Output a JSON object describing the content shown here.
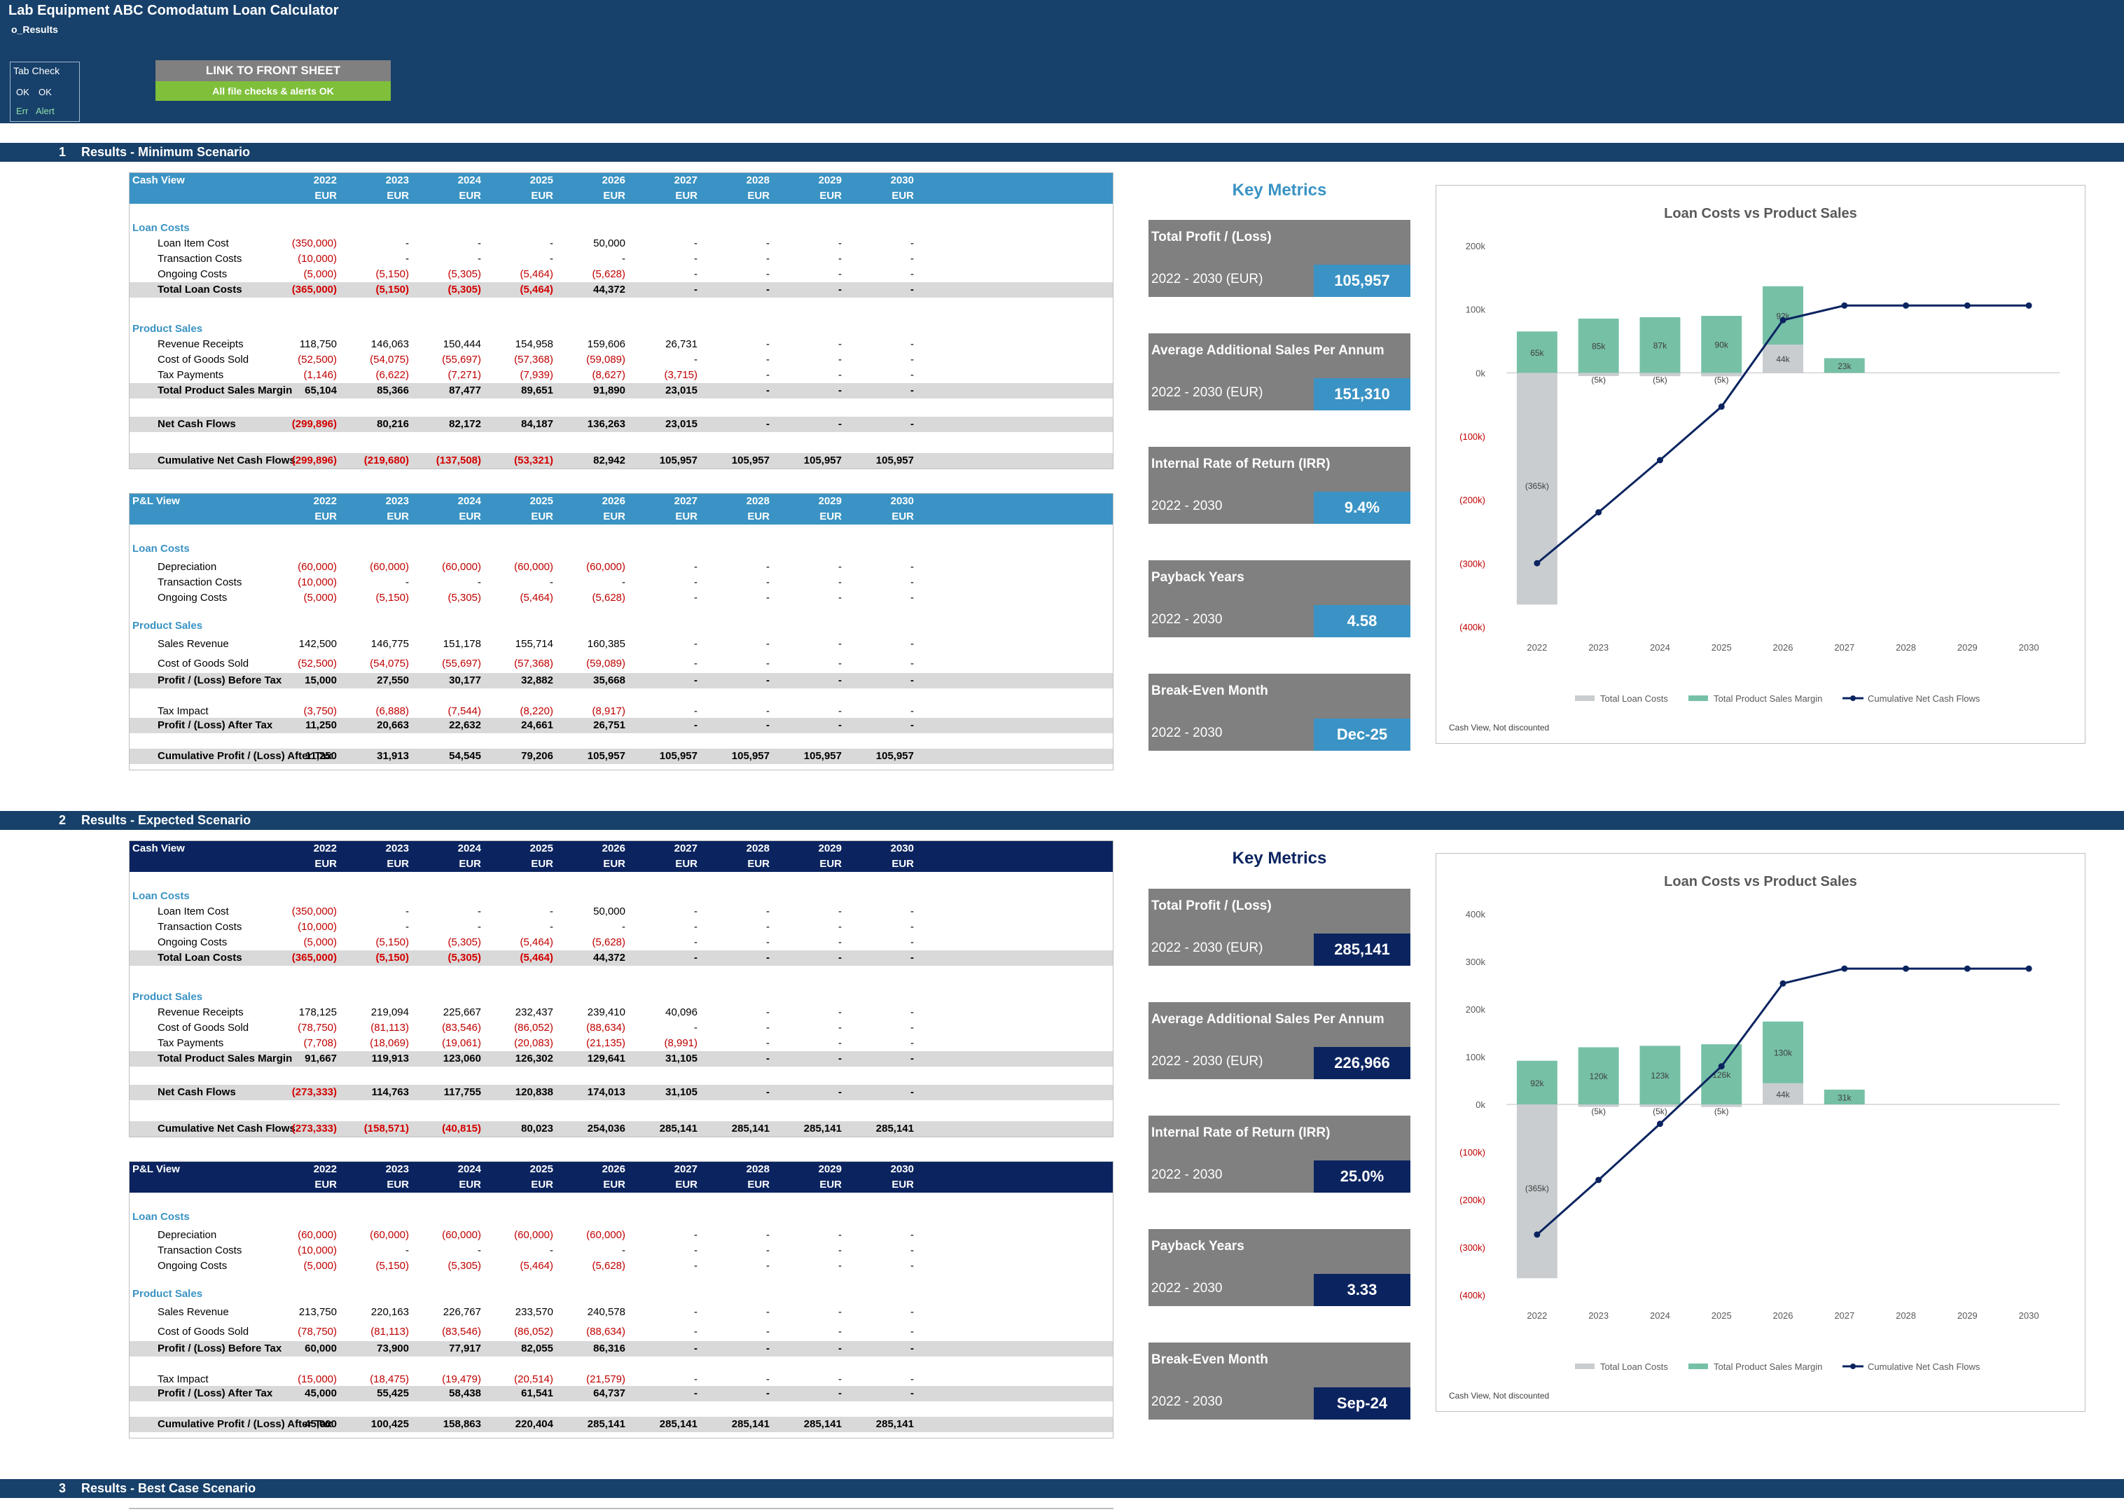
{
  "app": {
    "title": "Lab Equipment ABC Comodatum Loan Calculator",
    "sheet": "o_Results"
  },
  "tab_check": {
    "title": "Tab Check",
    "ok1": "OK",
    "ok2": "OK",
    "err": "Err",
    "alert": "Alert"
  },
  "link_button": "LINK TO FRONT SHEET",
  "status_badge": "All file checks & alerts OK",
  "years": [
    "2022",
    "2023",
    "2024",
    "2025",
    "2026",
    "2027",
    "2028",
    "2029",
    "2030"
  ],
  "currency": "EUR",
  "colors": {
    "header": "#17406a",
    "min_accent": "#3a93c4",
    "exp_accent": "#0b2460",
    "negative": "#c00000",
    "good": "#7fbf3a"
  },
  "sections": [
    {
      "num": "1",
      "title": "Results - Minimum Scenario"
    },
    {
      "num": "2",
      "title": "Results - Expected Scenario"
    },
    {
      "num": "3",
      "title": "Results - Best Case Scenario"
    }
  ],
  "min": {
    "cash": {
      "caption": "Cash View",
      "loan_label": "Loan Costs",
      "loan_item": {
        "label": "Loan Item Cost",
        "v": [
          "(350,000)",
          "-",
          "-",
          "-",
          "50,000",
          "-",
          "-",
          "-",
          "-"
        ]
      },
      "transaction": {
        "label": "Transaction Costs",
        "v": [
          "(10,000)",
          "-",
          "-",
          "-",
          "-",
          "-",
          "-",
          "-",
          "-"
        ]
      },
      "ongoing": {
        "label": "Ongoing Costs",
        "v": [
          "(5,000)",
          "(5,150)",
          "(5,305)",
          "(5,464)",
          "(5,628)",
          "-",
          "-",
          "-",
          "-"
        ]
      },
      "total_loan": {
        "label": "Total Loan Costs",
        "v": [
          "(365,000)",
          "(5,150)",
          "(5,305)",
          "(5,464)",
          "44,372",
          "-",
          "-",
          "-",
          "-"
        ]
      },
      "product_label": "Product Sales",
      "revenue": {
        "label": "Revenue Receipts",
        "v": [
          "118,750",
          "146,063",
          "150,444",
          "154,958",
          "159,606",
          "26,731",
          "-",
          "-",
          "-"
        ]
      },
      "cogs": {
        "label": "Cost of Goods Sold",
        "v": [
          "(52,500)",
          "(54,075)",
          "(55,697)",
          "(57,368)",
          "(59,089)",
          "-",
          "-",
          "-",
          "-"
        ]
      },
      "tax": {
        "label": "Tax Payments",
        "v": [
          "(1,146)",
          "(6,622)",
          "(7,271)",
          "(7,939)",
          "(8,627)",
          "(3,715)",
          "-",
          "-",
          "-"
        ]
      },
      "margin": {
        "label": "Total Product Sales Margin",
        "v": [
          "65,104",
          "85,366",
          "87,477",
          "89,651",
          "91,890",
          "23,015",
          "-",
          "-",
          "-"
        ]
      },
      "net": {
        "label": "Net Cash Flows",
        "v": [
          "(299,896)",
          "80,216",
          "82,172",
          "84,187",
          "136,263",
          "23,015",
          "-",
          "-",
          "-"
        ]
      },
      "cum": {
        "label": "Cumulative Net Cash Flows",
        "v": [
          "(299,896)",
          "(219,680)",
          "(137,508)",
          "(53,321)",
          "82,942",
          "105,957",
          "105,957",
          "105,957",
          "105,957"
        ]
      }
    },
    "pl": {
      "caption": "P&L View",
      "loan_label": "Loan Costs",
      "dep": {
        "label": "Depreciation",
        "v": [
          "(60,000)",
          "(60,000)",
          "(60,000)",
          "(60,000)",
          "(60,000)",
          "-",
          "-",
          "-",
          "-"
        ]
      },
      "transaction": {
        "label": "Transaction Costs",
        "v": [
          "(10,000)",
          "-",
          "-",
          "-",
          "-",
          "-",
          "-",
          "-",
          "-"
        ]
      },
      "ongoing": {
        "label": "Ongoing Costs",
        "v": [
          "(5,000)",
          "(5,150)",
          "(5,305)",
          "(5,464)",
          "(5,628)",
          "-",
          "-",
          "-",
          "-"
        ]
      },
      "product_label": "Product Sales",
      "sales": {
        "label": "Sales Revenue",
        "v": [
          "142,500",
          "146,775",
          "151,178",
          "155,714",
          "160,385",
          "-",
          "-",
          "-",
          "-"
        ]
      },
      "cogs": {
        "label": "Cost of Goods Sold",
        "v": [
          "(52,500)",
          "(54,075)",
          "(55,697)",
          "(57,368)",
          "(59,089)",
          "-",
          "-",
          "-",
          "-"
        ]
      },
      "pbt": {
        "label": "Profit / (Loss) Before Tax",
        "v": [
          "15,000",
          "27,550",
          "30,177",
          "32,882",
          "35,668",
          "-",
          "-",
          "-",
          "-"
        ]
      },
      "taxi": {
        "label": "Tax Impact",
        "v": [
          "(3,750)",
          "(6,888)",
          "(7,544)",
          "(8,220)",
          "(8,917)",
          "-",
          "-",
          "-",
          "-"
        ]
      },
      "pat": {
        "label": "Profit / (Loss) After Tax",
        "v": [
          "11,250",
          "20,663",
          "22,632",
          "24,661",
          "26,751",
          "-",
          "-",
          "-",
          "-"
        ]
      },
      "cum": {
        "label": "Cumulative Profit / (Loss) After Tax",
        "v": [
          "11,250",
          "31,913",
          "54,545",
          "79,206",
          "105,957",
          "105,957",
          "105,957",
          "105,957",
          "105,957"
        ]
      }
    },
    "metrics": {
      "title": "Key Metrics",
      "items": [
        {
          "label": "Total Profit / (Loss)",
          "period": "2022 - 2030 (EUR)",
          "value": "105,957"
        },
        {
          "label": "Average Additional Sales Per Annum",
          "period": "2022 - 2030 (EUR)",
          "value": "151,310"
        },
        {
          "label": "Internal Rate of Return (IRR)",
          "period": "2022 - 2030",
          "value": "9.4%"
        },
        {
          "label": "Payback Years",
          "period": "2022 - 2030",
          "value": "4.58"
        },
        {
          "label": "Break-Even Month",
          "period": "2022 - 2030",
          "value": "Dec-25"
        }
      ]
    }
  },
  "exp": {
    "cash": {
      "caption": "Cash View",
      "loan_label": "Loan Costs",
      "loan_item": {
        "label": "Loan Item Cost",
        "v": [
          "(350,000)",
          "-",
          "-",
          "-",
          "50,000",
          "-",
          "-",
          "-",
          "-"
        ]
      },
      "transaction": {
        "label": "Transaction Costs",
        "v": [
          "(10,000)",
          "-",
          "-",
          "-",
          "-",
          "-",
          "-",
          "-",
          "-"
        ]
      },
      "ongoing": {
        "label": "Ongoing Costs",
        "v": [
          "(5,000)",
          "(5,150)",
          "(5,305)",
          "(5,464)",
          "(5,628)",
          "-",
          "-",
          "-",
          "-"
        ]
      },
      "total_loan": {
        "label": "Total Loan Costs",
        "v": [
          "(365,000)",
          "(5,150)",
          "(5,305)",
          "(5,464)",
          "44,372",
          "-",
          "-",
          "-",
          "-"
        ]
      },
      "product_label": "Product Sales",
      "revenue": {
        "label": "Revenue Receipts",
        "v": [
          "178,125",
          "219,094",
          "225,667",
          "232,437",
          "239,410",
          "40,096",
          "-",
          "-",
          "-"
        ]
      },
      "cogs": {
        "label": "Cost of Goods Sold",
        "v": [
          "(78,750)",
          "(81,113)",
          "(83,546)",
          "(86,052)",
          "(88,634)",
          "-",
          "-",
          "-",
          "-"
        ]
      },
      "tax": {
        "label": "Tax Payments",
        "v": [
          "(7,708)",
          "(18,069)",
          "(19,061)",
          "(20,083)",
          "(21,135)",
          "(8,991)",
          "-",
          "-",
          "-"
        ]
      },
      "margin": {
        "label": "Total Product Sales Margin",
        "v": [
          "91,667",
          "119,913",
          "123,060",
          "126,302",
          "129,641",
          "31,105",
          "-",
          "-",
          "-"
        ]
      },
      "net": {
        "label": "Net Cash Flows",
        "v": [
          "(273,333)",
          "114,763",
          "117,755",
          "120,838",
          "174,013",
          "31,105",
          "-",
          "-",
          "-"
        ]
      },
      "cum": {
        "label": "Cumulative Net Cash Flows",
        "v": [
          "(273,333)",
          "(158,571)",
          "(40,815)",
          "80,023",
          "254,036",
          "285,141",
          "285,141",
          "285,141",
          "285,141"
        ]
      }
    },
    "pl": {
      "caption": "P&L View",
      "loan_label": "Loan Costs",
      "dep": {
        "label": "Depreciation",
        "v": [
          "(60,000)",
          "(60,000)",
          "(60,000)",
          "(60,000)",
          "(60,000)",
          "-",
          "-",
          "-",
          "-"
        ]
      },
      "transaction": {
        "label": "Transaction Costs",
        "v": [
          "(10,000)",
          "-",
          "-",
          "-",
          "-",
          "-",
          "-",
          "-",
          "-"
        ]
      },
      "ongoing": {
        "label": "Ongoing Costs",
        "v": [
          "(5,000)",
          "(5,150)",
          "(5,305)",
          "(5,464)",
          "(5,628)",
          "-",
          "-",
          "-",
          "-"
        ]
      },
      "product_label": "Product Sales",
      "sales": {
        "label": "Sales Revenue",
        "v": [
          "213,750",
          "220,163",
          "226,767",
          "233,570",
          "240,578",
          "-",
          "-",
          "-",
          "-"
        ]
      },
      "cogs": {
        "label": "Cost of Goods Sold",
        "v": [
          "(78,750)",
          "(81,113)",
          "(83,546)",
          "(86,052)",
          "(88,634)",
          "-",
          "-",
          "-",
          "-"
        ]
      },
      "pbt": {
        "label": "Profit / (Loss) Before Tax",
        "v": [
          "60,000",
          "73,900",
          "77,917",
          "82,055",
          "86,316",
          "-",
          "-",
          "-",
          "-"
        ]
      },
      "taxi": {
        "label": "Tax Impact",
        "v": [
          "(15,000)",
          "(18,475)",
          "(19,479)",
          "(20,514)",
          "(21,579)",
          "-",
          "-",
          "-",
          "-"
        ]
      },
      "pat": {
        "label": "Profit / (Loss) After Tax",
        "v": [
          "45,000",
          "55,425",
          "58,438",
          "61,541",
          "64,737",
          "-",
          "-",
          "-",
          "-"
        ]
      },
      "cum": {
        "label": "Cumulative Profit / (Loss) After Tax",
        "v": [
          "45,000",
          "100,425",
          "158,863",
          "220,404",
          "285,141",
          "285,141",
          "285,141",
          "285,141",
          "285,141"
        ]
      }
    },
    "metrics": {
      "title": "Key Metrics",
      "items": [
        {
          "label": "Total Profit / (Loss)",
          "period": "2022 - 2030 (EUR)",
          "value": "285,141"
        },
        {
          "label": "Average Additional Sales Per Annum",
          "period": "2022 - 2030 (EUR)",
          "value": "226,966"
        },
        {
          "label": "Internal Rate of Return (IRR)",
          "period": "2022 - 2030",
          "value": "25.0%"
        },
        {
          "label": "Payback Years",
          "period": "2022 - 2030",
          "value": "3.33"
        },
        {
          "label": "Break-Even Month",
          "period": "2022 - 2030",
          "value": "Sep-24"
        }
      ]
    }
  },
  "chart_data": [
    {
      "type": "bar",
      "title": "Loan Costs vs Product Sales",
      "note": "Cash View, Not discounted",
      "categories": [
        "2022",
        "2023",
        "2024",
        "2025",
        "2026",
        "2027",
        "2028",
        "2029",
        "2030"
      ],
      "ylim": [
        -400000,
        200000
      ],
      "yticks": [
        "200k",
        "100k",
        "0k",
        "(100k)",
        "(200k)",
        "(300k)",
        "(400k)"
      ],
      "ytick_values": [
        200000,
        100000,
        0,
        -100000,
        -200000,
        -300000,
        -400000
      ],
      "legend_placement": "bottom",
      "series": [
        {
          "name": "Total Loan Costs",
          "kind": "bar",
          "color": "#c9cdd0",
          "values": [
            -365000,
            -5150,
            -5305,
            -5464,
            44372,
            0,
            0,
            0,
            0
          ],
          "labels": [
            "(365k)",
            "(5k)",
            "(5k)",
            "(5k)",
            "44k",
            "",
            "",
            "",
            ""
          ]
        },
        {
          "name": "Total Product Sales Margin",
          "kind": "bar",
          "color": "#76c0a6",
          "values": [
            65104,
            85366,
            87477,
            89651,
            91890,
            23015,
            0,
            0,
            0
          ],
          "labels": [
            "65k",
            "85k",
            "87k",
            "90k",
            "92k",
            "23k",
            "",
            "",
            ""
          ]
        },
        {
          "name": "Cumulative Net Cash Flows",
          "kind": "line",
          "color": "#0b2460",
          "values": [
            -299896,
            -219680,
            -137508,
            -53321,
            82942,
            105957,
            105957,
            105957,
            105957
          ]
        }
      ]
    },
    {
      "type": "bar",
      "title": "Loan Costs vs Product Sales",
      "note": "Cash View, Not discounted",
      "categories": [
        "2022",
        "2023",
        "2024",
        "2025",
        "2026",
        "2027",
        "2028",
        "2029",
        "2030"
      ],
      "ylim": [
        -400000,
        400000
      ],
      "yticks": [
        "400k",
        "300k",
        "200k",
        "100k",
        "0k",
        "(100k)",
        "(200k)",
        "(300k)",
        "(400k)"
      ],
      "ytick_values": [
        400000,
        300000,
        200000,
        100000,
        0,
        -100000,
        -200000,
        -300000,
        -400000
      ],
      "legend_placement": "bottom",
      "series": [
        {
          "name": "Total Loan Costs",
          "kind": "bar",
          "color": "#c9cdd0",
          "values": [
            -365000,
            -5150,
            -5305,
            -5464,
            44372,
            0,
            0,
            0,
            0
          ],
          "labels": [
            "(365k)",
            "(5k)",
            "(5k)",
            "(5k)",
            "44k",
            "",
            "",
            "",
            ""
          ]
        },
        {
          "name": "Total Product Sales Margin",
          "kind": "bar",
          "color": "#76c0a6",
          "values": [
            91667,
            119913,
            123060,
            126302,
            129641,
            31105,
            0,
            0,
            0
          ],
          "labels": [
            "92k",
            "120k",
            "123k",
            "126k",
            "130k",
            "31k",
            "",
            "",
            ""
          ]
        },
        {
          "name": "Cumulative Net Cash Flows",
          "kind": "line",
          "color": "#0b2460",
          "values": [
            -273333,
            -158571,
            -40815,
            80023,
            254036,
            285141,
            285141,
            285141,
            285141
          ]
        }
      ]
    }
  ]
}
